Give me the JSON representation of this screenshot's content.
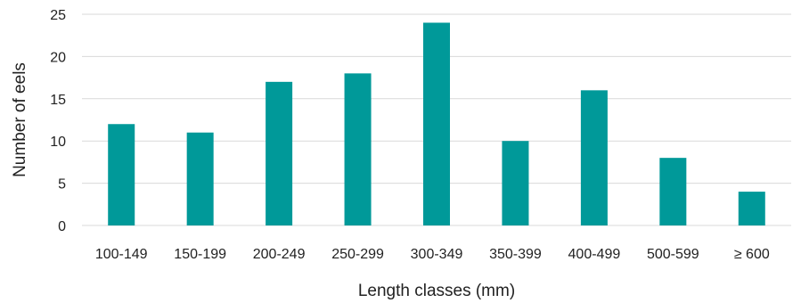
{
  "chart_data": {
    "type": "bar",
    "title": "",
    "xlabel": "Length classes (mm)",
    "ylabel": "Number of eels",
    "categories": [
      "100-149",
      "150-199",
      "200-249",
      "250-299",
      "300-349",
      "350-399",
      "400-499",
      "500-599",
      "≥ 600"
    ],
    "values": [
      12,
      11,
      17,
      18,
      24,
      10,
      16,
      8,
      4
    ],
    "ylim": [
      0,
      25
    ],
    "yticks": [
      0,
      5,
      10,
      15,
      20,
      25
    ],
    "grid": true,
    "legend": "none",
    "bar_color": "#009999"
  }
}
